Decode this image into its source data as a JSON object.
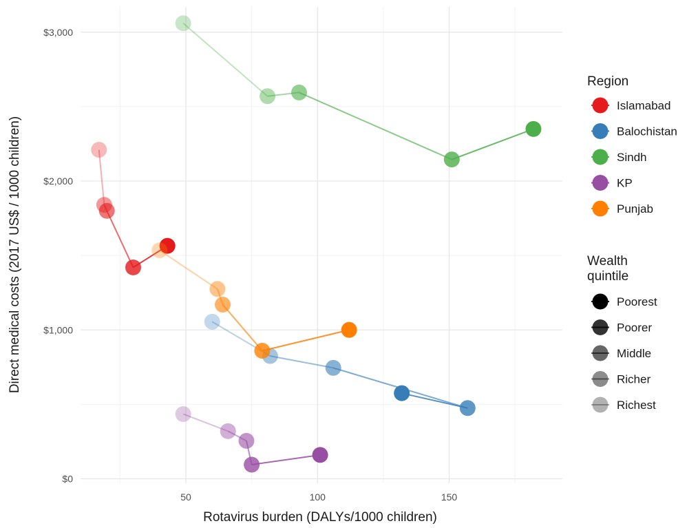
{
  "chart_data": {
    "type": "scatter",
    "xlabel": "Rotavirus burden (DALYs/1000 children)",
    "ylabel": "Direct medical costs (2017 US$ / 1000 children)",
    "xlim": [
      10,
      193
    ],
    "ylim": [
      -30,
      3170
    ],
    "x_ticks": [
      50,
      100,
      150
    ],
    "x_tick_labels": [
      "50",
      "100",
      "150"
    ],
    "x_minor_ticks": [
      25,
      75,
      125,
      175
    ],
    "y_ticks": [
      0,
      1000,
      2000,
      3000
    ],
    "y_tick_labels": [
      "$0",
      "$1,000",
      "$2,000",
      "$3,000"
    ],
    "y_minor_ticks": [
      500,
      1500,
      2500
    ],
    "grid": true,
    "legend_position": "right",
    "legends": [
      {
        "title": "Region",
        "entries": [
          {
            "label": "Islamabad",
            "color": "#e41a1c"
          },
          {
            "label": "Balochistan",
            "color": "#377eb8"
          },
          {
            "label": "Sindh",
            "color": "#4daf4a"
          },
          {
            "label": "KP",
            "color": "#984ea3"
          },
          {
            "label": "Punjab",
            "color": "#ff7f00"
          }
        ]
      },
      {
        "title": "Wealth quintile",
        "title_lines": [
          "Wealth",
          "quintile"
        ],
        "entries": [
          {
            "label": "Poorest",
            "opacity": 1.0
          },
          {
            "label": "Poorer",
            "opacity": 0.8
          },
          {
            "label": "Middle",
            "opacity": 0.6
          },
          {
            "label": "Richer",
            "opacity": 0.45
          },
          {
            "label": "Richest",
            "opacity": 0.3
          }
        ]
      }
    ],
    "series": [
      {
        "name": "Islamabad",
        "color": "#e41a1c",
        "points": [
          {
            "quintile": "Poorest",
            "x": 43,
            "y": 1565
          },
          {
            "quintile": "Poorer",
            "x": 30,
            "y": 1420
          },
          {
            "quintile": "Middle",
            "x": 20,
            "y": 1800
          },
          {
            "quintile": "Richer",
            "x": 19,
            "y": 1840
          },
          {
            "quintile": "Richest",
            "x": 17,
            "y": 2210
          }
        ]
      },
      {
        "name": "Balochistan",
        "color": "#377eb8",
        "points": [
          {
            "quintile": "Poorest",
            "x": 132,
            "y": 575
          },
          {
            "quintile": "Poorer",
            "x": 157,
            "y": 475
          },
          {
            "quintile": "Middle",
            "x": 106,
            "y": 745
          },
          {
            "quintile": "Richer",
            "x": 82,
            "y": 825
          },
          {
            "quintile": "Richest",
            "x": 60,
            "y": 1055
          }
        ]
      },
      {
        "name": "Sindh",
        "color": "#4daf4a",
        "points": [
          {
            "quintile": "Poorest",
            "x": 182,
            "y": 2350
          },
          {
            "quintile": "Poorer",
            "x": 151,
            "y": 2145
          },
          {
            "quintile": "Middle",
            "x": 93,
            "y": 2595
          },
          {
            "quintile": "Richer",
            "x": 81,
            "y": 2570
          },
          {
            "quintile": "Richest",
            "x": 49,
            "y": 3060
          }
        ]
      },
      {
        "name": "KP",
        "color": "#984ea3",
        "points": [
          {
            "quintile": "Poorest",
            "x": 101,
            "y": 160
          },
          {
            "quintile": "Poorer",
            "x": 75,
            "y": 95
          },
          {
            "quintile": "Middle",
            "x": 73,
            "y": 255
          },
          {
            "quintile": "Richer",
            "x": 66,
            "y": 320
          },
          {
            "quintile": "Richest",
            "x": 49,
            "y": 435
          }
        ]
      },
      {
        "name": "Punjab",
        "color": "#ff7f00",
        "points": [
          {
            "quintile": "Poorest",
            "x": 112,
            "y": 1000
          },
          {
            "quintile": "Poorer",
            "x": 79,
            "y": 860
          },
          {
            "quintile": "Middle",
            "x": 64,
            "y": 1170
          },
          {
            "quintile": "Richer",
            "x": 62,
            "y": 1275
          },
          {
            "quintile": "Richest",
            "x": 40,
            "y": 1535
          }
        ]
      }
    ]
  }
}
